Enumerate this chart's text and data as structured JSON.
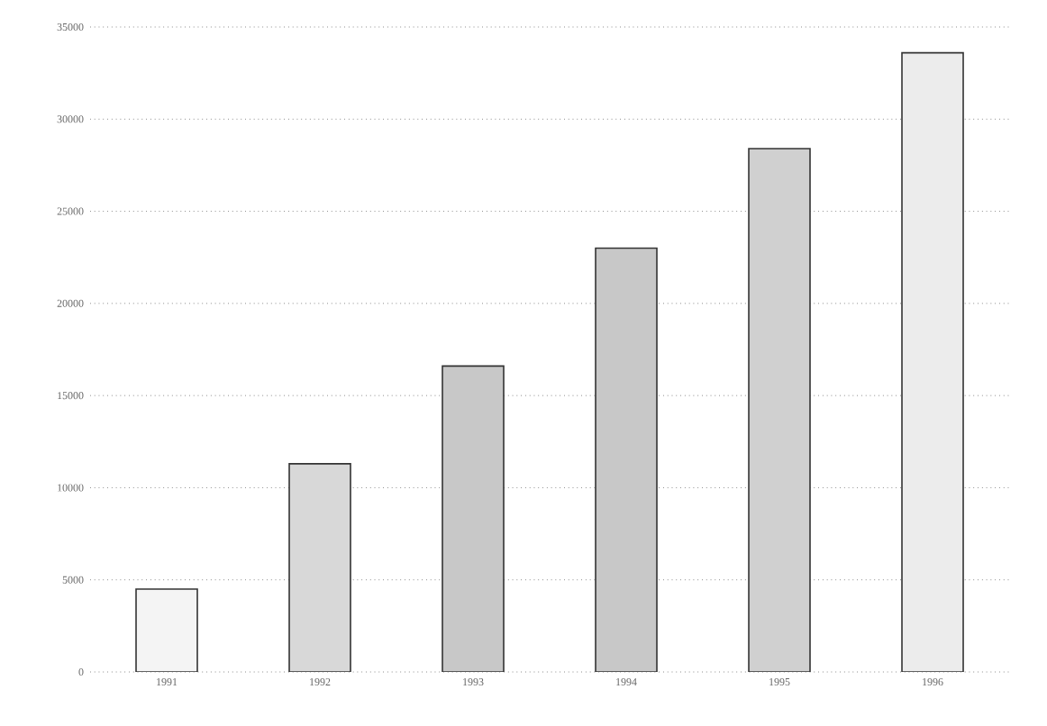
{
  "chart_data": {
    "type": "bar",
    "categories": [
      "1991",
      "1992",
      "1993",
      "1994",
      "1995",
      "1996"
    ],
    "values": [
      4500,
      11300,
      16600,
      23000,
      28400,
      33600
    ],
    "colors": [
      "#f4f4f4",
      "#d8d8d8",
      "#c8c8c8",
      "#c8c8c8",
      "#d0d0d0",
      "#ececec"
    ],
    "ylim": [
      0,
      35000
    ],
    "yticks": [
      0,
      5000,
      10000,
      15000,
      20000,
      25000,
      30000,
      35000
    ],
    "grid": "y"
  }
}
